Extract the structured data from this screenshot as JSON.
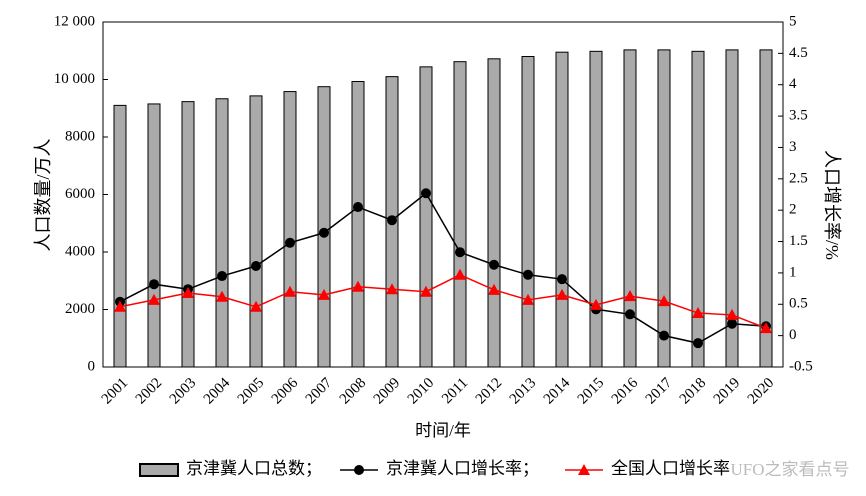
{
  "chart_data": {
    "type": "combo",
    "x_label": "时间/年",
    "y_label": "人口数量/万人",
    "y2_label": "人口增长率/%",
    "categories": [
      "2001",
      "2002",
      "2003",
      "2004",
      "2005",
      "2006",
      "2007",
      "2008",
      "2009",
      "2010",
      "2011",
      "2012",
      "2013",
      "2014",
      "2015",
      "2016",
      "2017",
      "2018",
      "2019",
      "2020"
    ],
    "series": [
      {
        "name": "京津冀人口总数；",
        "type": "bar",
        "color": "#aaaaaa",
        "values": [
          9100,
          9150,
          9230,
          9330,
          9430,
          9580,
          9750,
          9930,
          10100,
          10440,
          10620,
          10720,
          10800,
          10950,
          10980,
          11030,
          11030,
          10980,
          11030,
          11030
        ]
      },
      {
        "name": "京津冀人口增长率；",
        "type": "line",
        "marker": "circle",
        "color": "#000000",
        "axis": "y2",
        "values": [
          0.54,
          0.82,
          0.74,
          0.95,
          1.11,
          1.48,
          1.64,
          2.05,
          1.84,
          2.27,
          1.33,
          1.13,
          0.97,
          0.9,
          0.42,
          0.34,
          0.0,
          -0.12,
          0.19,
          0.15
        ]
      },
      {
        "name": "全国人口增长率",
        "type": "line",
        "marker": "triangle",
        "color": "#ff0000",
        "axis": "y2",
        "values": [
          0.46,
          0.57,
          0.68,
          0.62,
          0.46,
          0.7,
          0.65,
          0.78,
          0.74,
          0.7,
          0.97,
          0.73,
          0.57,
          0.65,
          0.49,
          0.63,
          0.55,
          0.36,
          0.33,
          0.12
        ]
      }
    ],
    "ylim": [
      0,
      12000
    ],
    "yticks": [
      0,
      2000,
      4000,
      6000,
      8000,
      {
        "value": 10000,
        "label": "10 000"
      },
      {
        "value": 12000,
        "label": "12 000"
      }
    ],
    "y2lim": [
      -0.5,
      5
    ],
    "y2ticks": [
      -0.5,
      0,
      0.5,
      1,
      1.5,
      2,
      2.5,
      3,
      3.5,
      4,
      4.5,
      5
    ],
    "grid": false,
    "legend": "bottom"
  },
  "watermark": "UFO之家看点号"
}
